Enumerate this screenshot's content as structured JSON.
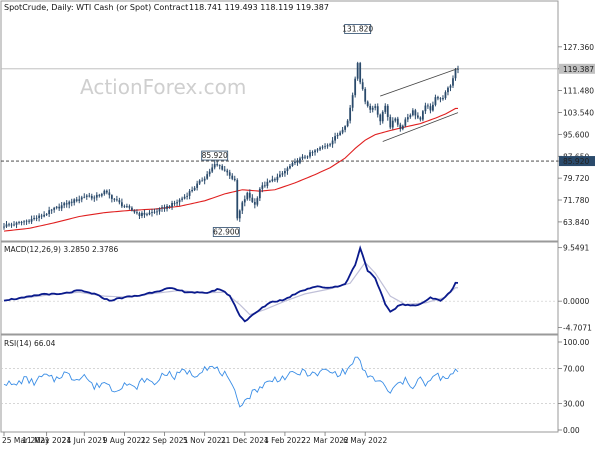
{
  "header": {
    "symbol_title": "SpotCrude, Daily:  WTI Cash (or Spot) Contract",
    "ohlc": "118.741 119.493 118.119 119.387",
    "watermark": "ActionForex.com"
  },
  "colors": {
    "candle": "#2a4a6b",
    "sma": "#e02020",
    "macd_line": "#0a1a8c",
    "macd_signal": "#c0c0d8",
    "rsi": "#3b8ee6",
    "channel": "#444444",
    "price_badge_bg": "#c0c0c0",
    "level_badge_bg": "#2a4a6b"
  },
  "chart_data": [
    {
      "type": "candlestick",
      "title": "SpotCrude, Daily:  WTI Cash (or Spot) Contract",
      "ylim": [
        58.0,
        140.0
      ],
      "y_ticks": [
        "127.360",
        "119.387",
        "111.480",
        "103.540",
        "95.600",
        "87.650",
        "85.920",
        "79.720",
        "71.780",
        "63.840"
      ],
      "y_tick_values": [
        127.36,
        119.387,
        111.48,
        103.54,
        95.6,
        87.65,
        85.92,
        79.72,
        71.78,
        63.84
      ],
      "current_price": "119.387",
      "current_price_value": 119.387,
      "horizontal_line_value": 85.92,
      "annotations": [
        {
          "text": "131.820",
          "value": 131.82,
          "date_index": 141
        },
        {
          "text": "85.920",
          "value": 85.92,
          "date_index": 84
        },
        {
          "text": "62.900",
          "value": 62.9,
          "date_index": 93
        }
      ],
      "price_anchors": [
        [
          0,
          62.5
        ],
        [
          5,
          63.2
        ],
        [
          10,
          64.5
        ],
        [
          15,
          66.0
        ],
        [
          20,
          68.5
        ],
        [
          25,
          70.5
        ],
        [
          30,
          72.2
        ],
        [
          33,
          73.5
        ],
        [
          36,
          72.5
        ],
        [
          40,
          74.8
        ],
        [
          44,
          72.0
        ],
        [
          47,
          70.0
        ],
        [
          50,
          68.5
        ],
        [
          54,
          66.5
        ],
        [
          57,
          66.8
        ],
        [
          60,
          67.5
        ],
        [
          64,
          69.0
        ],
        [
          68,
          70.5
        ],
        [
          72,
          73.0
        ],
        [
          76,
          76.5
        ],
        [
          80,
          80.0
        ],
        [
          84,
          84.5
        ],
        [
          86,
          84.0
        ],
        [
          88,
          82.5
        ],
        [
          90,
          81.0
        ],
        [
          92,
          78.5
        ],
        [
          93,
          65.0
        ],
        [
          95,
          70.5
        ],
        [
          97,
          74.0
        ],
        [
          100,
          70.0
        ],
        [
          102,
          76.0
        ],
        [
          106,
          78.5
        ],
        [
          110,
          80.5
        ],
        [
          114,
          84.0
        ],
        [
          118,
          86.5
        ],
        [
          122,
          88.5
        ],
        [
          126,
          90.5
        ],
        [
          130,
          92.5
        ],
        [
          134,
          96.5
        ],
        [
          137,
          100.5
        ],
        [
          139,
          110.0
        ],
        [
          141,
          122.0
        ],
        [
          142,
          115.0
        ],
        [
          144,
          108.0
        ],
        [
          146,
          104.5
        ],
        [
          148,
          106.0
        ],
        [
          150,
          100.5
        ],
        [
          152,
          106.0
        ],
        [
          154,
          98.5
        ],
        [
          156,
          101.5
        ],
        [
          158,
          97.5
        ],
        [
          160,
          101.0
        ],
        [
          163,
          104.0
        ],
        [
          166,
          100.5
        ],
        [
          168,
          106.5
        ],
        [
          170,
          104.0
        ],
        [
          172,
          109.5
        ],
        [
          174,
          108.0
        ],
        [
          176,
          110.5
        ],
        [
          178,
          113.5
        ],
        [
          179,
          116.0
        ],
        [
          180,
          119.4
        ]
      ],
      "sma_anchors": [
        [
          0,
          60.5
        ],
        [
          10,
          61.5
        ],
        [
          20,
          63.5
        ],
        [
          30,
          65.8
        ],
        [
          40,
          67.2
        ],
        [
          50,
          68.0
        ],
        [
          60,
          68.5
        ],
        [
          70,
          69.5
        ],
        [
          80,
          71.5
        ],
        [
          88,
          74.0
        ],
        [
          95,
          75.5
        ],
        [
          102,
          75.0
        ],
        [
          108,
          75.5
        ],
        [
          116,
          78.0
        ],
        [
          124,
          81.0
        ],
        [
          130,
          83.5
        ],
        [
          136,
          87.0
        ],
        [
          140,
          90.5
        ],
        [
          144,
          93.5
        ],
        [
          148,
          95.5
        ],
        [
          154,
          97.0
        ],
        [
          160,
          98.3
        ],
        [
          166,
          99.5
        ],
        [
          172,
          101.5
        ],
        [
          176,
          103.0
        ],
        [
          180,
          105.0
        ]
      ],
      "channel_lines": [
        {
          "from": [
            150,
            109.5
          ],
          "to": [
            181,
            119.5
          ]
        },
        {
          "from": [
            151,
            93.0
          ],
          "to": [
            181,
            103.5
          ]
        }
      ]
    },
    {
      "type": "line",
      "title": "MACD(12,26,9) 3.2850 2.3786",
      "ylim": [
        -5.5,
        10.2
      ],
      "y_ticks": [
        "9.5491",
        "0.0000",
        "-4.7071"
      ],
      "y_tick_values": [
        9.5491,
        0.0,
        -4.7071
      ],
      "series": [
        {
          "name": "macd",
          "anchors": [
            [
              0,
              0.2
            ],
            [
              8,
              0.6
            ],
            [
              16,
              1.3
            ],
            [
              22,
              1.2
            ],
            [
              30,
              1.9
            ],
            [
              36,
              1.3
            ],
            [
              42,
              0.1
            ],
            [
              48,
              0.7
            ],
            [
              54,
              1.0
            ],
            [
              60,
              1.7
            ],
            [
              66,
              2.3
            ],
            [
              72,
              1.7
            ],
            [
              80,
              1.4
            ],
            [
              86,
              2.2
            ],
            [
              90,
              1.0
            ],
            [
              94,
              -2.5
            ],
            [
              96,
              -3.6
            ],
            [
              100,
              -2.2
            ],
            [
              106,
              -0.2
            ],
            [
              112,
              0.3
            ],
            [
              118,
              1.8
            ],
            [
              124,
              2.6
            ],
            [
              130,
              2.4
            ],
            [
              136,
              3.0
            ],
            [
              140,
              6.5
            ],
            [
              142,
              9.5
            ],
            [
              145,
              5.5
            ],
            [
              148,
              4.0
            ],
            [
              152,
              -0.5
            ],
            [
              154,
              -1.9
            ],
            [
              158,
              -0.6
            ],
            [
              162,
              -0.8
            ],
            [
              166,
              -0.5
            ],
            [
              170,
              0.6
            ],
            [
              174,
              0.1
            ],
            [
              178,
              1.6
            ],
            [
              180,
              3.3
            ]
          ]
        },
        {
          "name": "signal",
          "anchors": [
            [
              0,
              0.1
            ],
            [
              10,
              0.7
            ],
            [
              20,
              1.2
            ],
            [
              30,
              1.6
            ],
            [
              40,
              0.9
            ],
            [
              50,
              0.7
            ],
            [
              60,
              1.4
            ],
            [
              70,
              1.9
            ],
            [
              80,
              1.5
            ],
            [
              88,
              1.6
            ],
            [
              94,
              -0.6
            ],
            [
              98,
              -2.4
            ],
            [
              104,
              -1.5
            ],
            [
              112,
              0.0
            ],
            [
              120,
              1.3
            ],
            [
              130,
              2.2
            ],
            [
              138,
              3.2
            ],
            [
              144,
              6.9
            ],
            [
              148,
              5.0
            ],
            [
              154,
              0.9
            ],
            [
              160,
              -0.6
            ],
            [
              168,
              -0.3
            ],
            [
              176,
              0.7
            ],
            [
              180,
              2.4
            ]
          ]
        }
      ]
    },
    {
      "type": "line",
      "title": "RSI(14) 66.04",
      "ylim": [
        0,
        100
      ],
      "y_ticks": [
        "100.00",
        "70.00",
        "30.00",
        "0.00"
      ],
      "y_tick_values": [
        100,
        70,
        30,
        0
      ],
      "series": [
        {
          "name": "rsi",
          "anchors": [
            [
              0,
              55
            ],
            [
              4,
              50
            ],
            [
              8,
              58
            ],
            [
              12,
              54
            ],
            [
              16,
              62
            ],
            [
              20,
              57
            ],
            [
              24,
              65
            ],
            [
              28,
              58
            ],
            [
              32,
              63
            ],
            [
              36,
              48
            ],
            [
              40,
              55
            ],
            [
              44,
              45
            ],
            [
              48,
              53
            ],
            [
              52,
              47
            ],
            [
              56,
              58
            ],
            [
              60,
              52
            ],
            [
              64,
              66
            ],
            [
              68,
              60
            ],
            [
              72,
              68
            ],
            [
              76,
              62
            ],
            [
              80,
              72
            ],
            [
              84,
              70
            ],
            [
              88,
              63
            ],
            [
              92,
              42
            ],
            [
              94,
              30
            ],
            [
              96,
              33
            ],
            [
              100,
              45
            ],
            [
              104,
              52
            ],
            [
              108,
              58
            ],
            [
              112,
              60
            ],
            [
              116,
              64
            ],
            [
              120,
              66
            ],
            [
              124,
              62
            ],
            [
              128,
              68
            ],
            [
              132,
              64
            ],
            [
              136,
              66
            ],
            [
              138,
              72
            ],
            [
              140,
              80
            ],
            [
              141,
              86
            ],
            [
              143,
              66
            ],
            [
              146,
              60
            ],
            [
              150,
              55
            ],
            [
              152,
              48
            ],
            [
              154,
              42
            ],
            [
              157,
              52
            ],
            [
              160,
              56
            ],
            [
              163,
              50
            ],
            [
              166,
              60
            ],
            [
              168,
              48
            ],
            [
              170,
              58
            ],
            [
              173,
              62
            ],
            [
              176,
              56
            ],
            [
              178,
              62
            ],
            [
              180,
              66
            ]
          ]
        }
      ]
    }
  ],
  "x_axis": {
    "labels": [
      "25 Mar 2021",
      "11 May 2021",
      "24 Jun 2021",
      "9 Aug 2021",
      "22 Sep 2021",
      "5 Nov 2021",
      "21 Dec 2021",
      "4 Feb 2022",
      "22 Mar 2022",
      "6 May 2022"
    ],
    "label_indices": [
      0,
      17,
      32,
      48,
      64,
      80,
      96,
      112,
      128,
      144
    ]
  }
}
